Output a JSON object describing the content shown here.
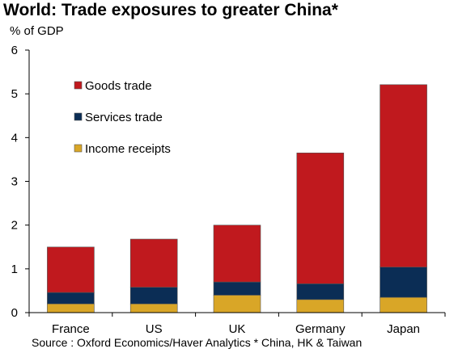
{
  "header": {
    "title": "World: Trade exposures to greater China*",
    "unit": "% of GDP"
  },
  "footer": {
    "source": "Source : Oxford Economics/Haver Analytics * China, HK & Taiwan"
  },
  "chart_data": {
    "type": "bar",
    "stacked": true,
    "title": "World: Trade exposures to greater China*",
    "ylabel": "% of GDP",
    "xlabel": "",
    "ylim": [
      0,
      6
    ],
    "yticks": [
      "0",
      "1",
      "2",
      "3",
      "4",
      "5",
      "6"
    ],
    "grid": false,
    "legend_position": "top-left",
    "categories": [
      "France",
      "US",
      "UK",
      "Germany",
      "Japan"
    ],
    "series": [
      {
        "name": "Income receipts",
        "color": "#D9A627",
        "values": [
          0.2,
          0.2,
          0.4,
          0.3,
          0.35
        ]
      },
      {
        "name": "Services trade",
        "color": "#0B2D55",
        "values": [
          0.26,
          0.38,
          0.3,
          0.36,
          0.69
        ]
      },
      {
        "name": "Goods trade",
        "color": "#C0191E",
        "values": [
          1.04,
          1.1,
          1.3,
          2.99,
          4.17
        ]
      }
    ],
    "legend_order": [
      "Goods trade",
      "Services trade",
      "Income receipts"
    ]
  }
}
